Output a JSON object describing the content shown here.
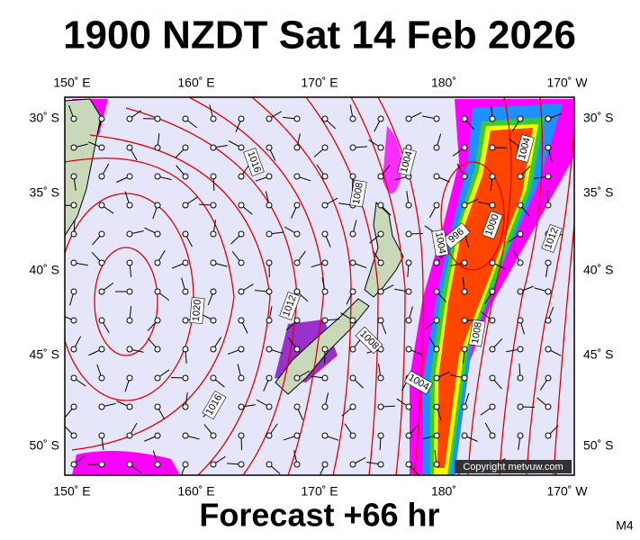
{
  "header": {
    "title": "1900 NZDT Sat 14 Feb 2026"
  },
  "footer": {
    "forecast": "Forecast +66 hr",
    "model": "M4"
  },
  "axes": {
    "top": [
      "150˚ E",
      "160˚ E",
      "170˚ E",
      "180˚",
      "170˚ W"
    ],
    "bottom": [
      "150˚ E",
      "160˚ E",
      "170˚ E",
      "180˚",
      "170˚ W"
    ],
    "left": [
      "30˚ S",
      "35˚ S",
      "40˚ S",
      "45˚ S",
      "50˚ S"
    ],
    "right": [
      "30˚ S",
      "35˚ S",
      "40˚ S",
      "45˚ S",
      "50˚ S"
    ]
  },
  "isobar_labels": [
    "1016",
    "1008",
    "1004",
    "1004",
    "1000",
    "996",
    "1004",
    "1012",
    "1020",
    "1012",
    "1008",
    "1008",
    "1004",
    "1016"
  ],
  "copyright": "Copyright metvuw.com"
}
